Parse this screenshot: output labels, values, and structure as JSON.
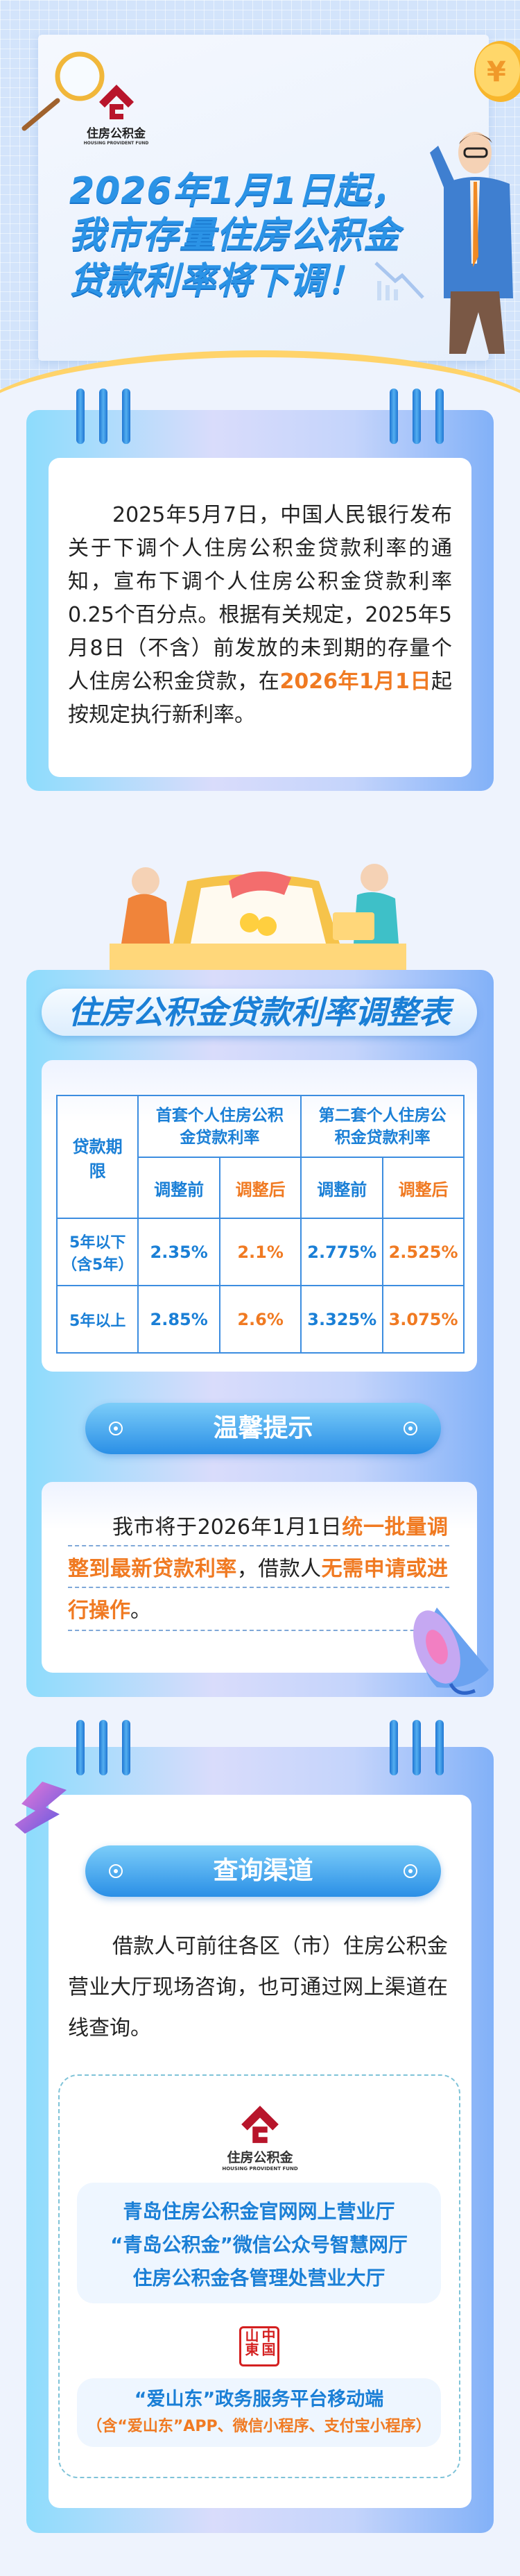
{
  "header": {
    "logo_cn": "住房公积金",
    "logo_en": "HOUSING PROVIDENT FUND",
    "title_lines": [
      "2026年1月1日起，",
      "我市存量住房公积金",
      "贷款利率将下调！"
    ]
  },
  "notice": {
    "text_before": "2025年5月7日，中国人民银行发布关于下调个人住房公积金贷款利率的通知，宣布下调个人住房公积金贷款利率0.25个百分点。根据有关规定，2025年5月8日（不含）前发放的未到期的存量个人住房公积金贷款，在",
    "highlight": "2026年1月1日",
    "text_after": "起按规定执行新利率。"
  },
  "rate_table": {
    "title": "住房公积金贷款利率调整表",
    "col_term": "贷款期限",
    "group1": "首套个人住房公积金贷款利率",
    "group2": "第二套个人住房公积金贷款利率",
    "before_label": "调整前",
    "after_label": "调整后",
    "rows": [
      {
        "term": "5年以下（含5年）",
        "first_before": "2.35%",
        "first_after": "2.1%",
        "second_before": "2.775%",
        "second_after": "2.525%"
      },
      {
        "term": "5年以上",
        "first_before": "2.85%",
        "first_after": "2.6%",
        "second_before": "3.325%",
        "second_after": "3.075%"
      }
    ]
  },
  "tips": {
    "title": "温馨提示",
    "p1": "我市将于2026年1月1日",
    "h1": "统一批量调整到最新贷款利率",
    "p2": "，借款人",
    "h2": "无需申请或进行操作",
    "p3": "。"
  },
  "channels": {
    "title": "查询渠道",
    "intro": "借款人可前往各区（市）住房公积金营业大厅现场咨询，也可通过网上渠道在线查询。",
    "logo_cn": "住房公积金",
    "logo_en": "HOUSING PROVIDENT FUND",
    "list": [
      "青岛住房公积金官网网上营业厅",
      "“青岛公积金”微信公众号智慧网厅",
      "住房公积金各管理处营业大厅"
    ],
    "seal_text": "中国山東",
    "app_title": "“爱山东”政务服务平台移动端",
    "app_note": "（含“爱山东”APP、微信小程序、支付宝小程序）"
  },
  "colors": {
    "blue": "#1a7fd6",
    "orange": "#f07a22",
    "logo_red": "#b8152b"
  }
}
